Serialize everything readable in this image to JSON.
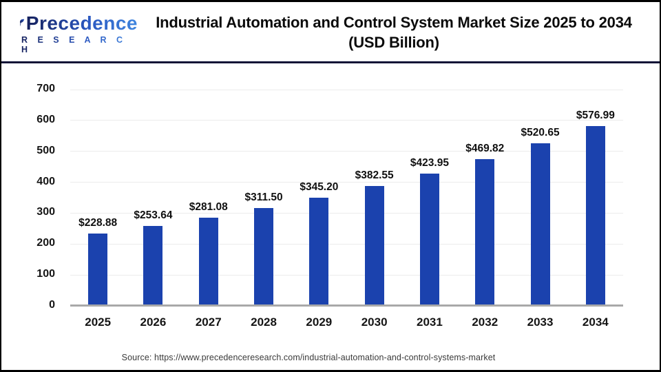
{
  "logo": {
    "brand": "Precedence",
    "research": "R E S E A R C H"
  },
  "title": {
    "line1": "Industrial Automation and Control System Market Size 2025 to 2034",
    "line2": "(USD Billion)"
  },
  "source": {
    "text": "Source: https://www.precedenceresearch.com/industrial-automation-and-control-systems-market"
  },
  "colors": {
    "bar": "#1b42ae",
    "grid": "#ececec",
    "baseline": "#a9a9a9",
    "divider": "#0e1136",
    "frame": "#000000",
    "title": "#0b0b0b",
    "axis_text": "#151515",
    "source_text": "#3a3a3a",
    "logo_dark": "#15205c",
    "logo_light": "#3f86df"
  },
  "chart_data": {
    "type": "bar",
    "title": "Industrial Automation and Control System Market Size 2025 to 2034 (USD Billion)",
    "categories": [
      "2025",
      "2026",
      "2027",
      "2028",
      "2029",
      "2030",
      "2031",
      "2032",
      "2033",
      "2034"
    ],
    "values": [
      228.88,
      253.64,
      281.08,
      311.5,
      345.2,
      382.55,
      423.95,
      469.82,
      520.65,
      576.99
    ],
    "value_labels": [
      "$228.88",
      "$253.64",
      "$281.08",
      "$311.50",
      "$345.20",
      "$382.55",
      "$423.95",
      "$469.82",
      "$520.65",
      "$576.99"
    ],
    "xlabel": "",
    "ylabel": "",
    "ylim": [
      0,
      700
    ],
    "yticks": [
      0,
      100,
      200,
      300,
      400,
      500,
      600,
      700
    ],
    "grid": true,
    "legend": false,
    "bar_color": "#1b42ae"
  }
}
